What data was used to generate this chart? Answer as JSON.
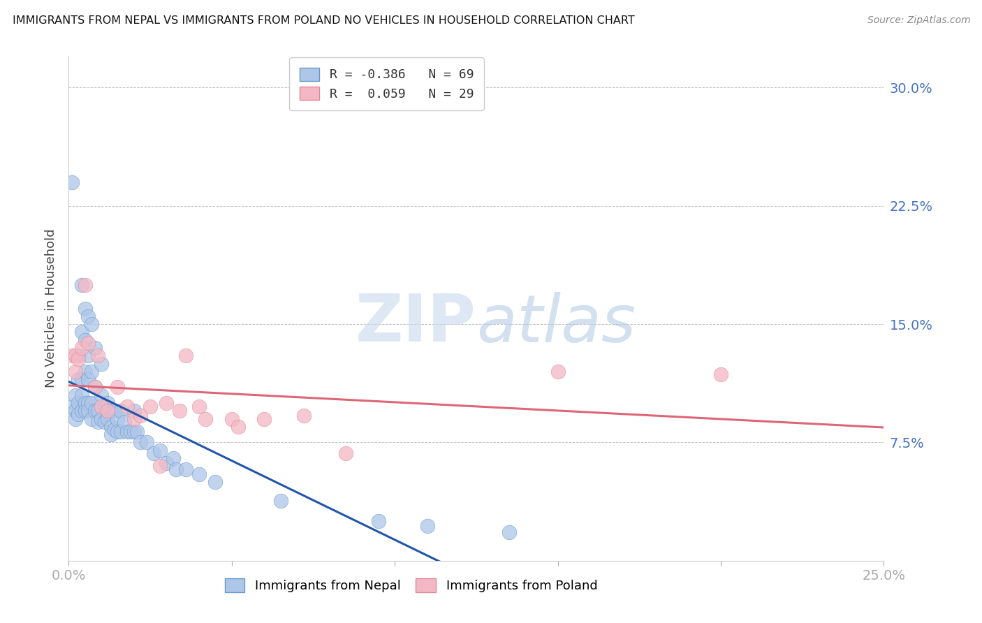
{
  "title": "IMMIGRANTS FROM NEPAL VS IMMIGRANTS FROM POLAND NO VEHICLES IN HOUSEHOLD CORRELATION CHART",
  "source": "Source: ZipAtlas.com",
  "ylabel": "No Vehicles in Household",
  "ytick_labels": [
    "7.5%",
    "15.0%",
    "22.5%",
    "30.0%"
  ],
  "ytick_values": [
    0.075,
    0.15,
    0.225,
    0.3
  ],
  "xlim": [
    0.0,
    0.25
  ],
  "ylim": [
    0.0,
    0.32
  ],
  "nepal_R": -0.386,
  "nepal_N": 69,
  "poland_R": 0.059,
  "poland_N": 29,
  "nepal_color": "#aec6e8",
  "nepal_edge": "#6699cc",
  "poland_color": "#f4b8c4",
  "poland_edge": "#e0889a",
  "nepal_line_color": "#2255aa",
  "poland_line_color": "#dd6677",
  "watermark_zip": "ZIP",
  "watermark_atlas": "atlas",
  "nepal_x": [
    0.001,
    0.001,
    0.002,
    0.002,
    0.002,
    0.003,
    0.003,
    0.003,
    0.003,
    0.004,
    0.004,
    0.004,
    0.004,
    0.004,
    0.005,
    0.005,
    0.005,
    0.005,
    0.005,
    0.006,
    0.006,
    0.006,
    0.006,
    0.006,
    0.007,
    0.007,
    0.007,
    0.007,
    0.008,
    0.008,
    0.008,
    0.009,
    0.009,
    0.01,
    0.01,
    0.01,
    0.011,
    0.011,
    0.012,
    0.012,
    0.013,
    0.013,
    0.013,
    0.014,
    0.014,
    0.015,
    0.015,
    0.016,
    0.016,
    0.017,
    0.018,
    0.019,
    0.02,
    0.02,
    0.021,
    0.022,
    0.024,
    0.026,
    0.028,
    0.03,
    0.032,
    0.033,
    0.036,
    0.04,
    0.045,
    0.065,
    0.095,
    0.11,
    0.135
  ],
  "nepal_y": [
    0.24,
    0.098,
    0.105,
    0.095,
    0.09,
    0.13,
    0.115,
    0.1,
    0.093,
    0.175,
    0.145,
    0.115,
    0.105,
    0.095,
    0.16,
    0.14,
    0.12,
    0.1,
    0.095,
    0.155,
    0.13,
    0.115,
    0.1,
    0.095,
    0.15,
    0.12,
    0.1,
    0.09,
    0.135,
    0.11,
    0.095,
    0.095,
    0.088,
    0.125,
    0.105,
    0.09,
    0.098,
    0.088,
    0.1,
    0.09,
    0.095,
    0.085,
    0.08,
    0.095,
    0.083,
    0.09,
    0.082,
    0.095,
    0.082,
    0.088,
    0.082,
    0.082,
    0.095,
    0.082,
    0.082,
    0.075,
    0.075,
    0.068,
    0.07,
    0.062,
    0.065,
    0.058,
    0.058,
    0.055,
    0.05,
    0.038,
    0.025,
    0.022,
    0.018
  ],
  "poland_x": [
    0.001,
    0.002,
    0.002,
    0.003,
    0.004,
    0.005,
    0.006,
    0.008,
    0.009,
    0.01,
    0.012,
    0.015,
    0.018,
    0.02,
    0.022,
    0.025,
    0.028,
    0.03,
    0.034,
    0.036,
    0.04,
    0.042,
    0.05,
    0.052,
    0.06,
    0.072,
    0.085,
    0.15,
    0.2
  ],
  "poland_y": [
    0.13,
    0.13,
    0.12,
    0.128,
    0.135,
    0.175,
    0.138,
    0.11,
    0.13,
    0.098,
    0.095,
    0.11,
    0.098,
    0.09,
    0.092,
    0.098,
    0.06,
    0.1,
    0.095,
    0.13,
    0.098,
    0.09,
    0.09,
    0.085,
    0.09,
    0.092,
    0.068,
    0.12,
    0.118
  ]
}
